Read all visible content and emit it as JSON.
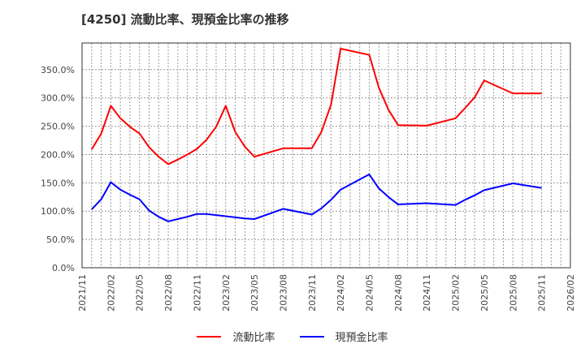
{
  "title": "[4250]  流動比率、現預金比率の推移",
  "colors": {
    "current_ratio": "#ff0000",
    "cash_ratio": "#0000ff",
    "grid": "#999999",
    "axis": "#333333"
  },
  "legend": [
    {
      "label": "流動比率",
      "color": "#ff0000"
    },
    {
      "label": "現預金比率",
      "color": "#0000ff"
    }
  ],
  "chart_data": {
    "type": "line",
    "title": "[4250]  流動比率、現預金比率の推移",
    "xlabel": "",
    "ylabel": "",
    "ylim": [
      0,
      397
    ],
    "yticks": [
      0,
      50,
      100,
      150,
      200,
      250,
      300,
      350
    ],
    "ytick_labels": [
      "0.0%",
      "50.0%",
      "100.0%",
      "150.0%",
      "200.0%",
      "250.0%",
      "300.0%",
      "350.0%"
    ],
    "xtick_labels": [
      "2021/11",
      "2022/02",
      "2022/05",
      "2022/08",
      "2022/11",
      "2023/02",
      "2023/05",
      "2023/08",
      "2023/11",
      "2024/02",
      "2024/05",
      "2024/08",
      "2024/11",
      "2025/02",
      "2025/05",
      "2025/08",
      "2025/11",
      "2026/02"
    ],
    "grid": true,
    "legend_position": "bottom",
    "x": [
      "2021/12",
      "2022/01",
      "2022/02",
      "2022/03",
      "2022/04",
      "2022/05",
      "2022/06",
      "2022/07",
      "2022/08",
      "2022/09",
      "2022/10",
      "2022/11",
      "2022/12",
      "2023/01",
      "2023/02",
      "2023/03",
      "2023/04",
      "2023/05",
      "2023/08",
      "2023/11",
      "2023/12",
      "2024/01",
      "2024/02",
      "2024/05",
      "2024/06",
      "2024/07",
      "2024/08",
      "2024/11",
      "2025/02",
      "2025/03",
      "2025/04",
      "2025/05",
      "2025/08",
      "2025/11"
    ],
    "series": [
      {
        "name": "流動比率",
        "color": "#ff0000",
        "values": [
          209,
          237,
          286,
          264,
          249,
          237,
          213,
          196,
          183,
          191,
          200,
          210,
          226,
          249,
          286,
          240,
          214,
          196,
          211,
          211,
          240,
          288,
          387,
          376,
          318,
          279,
          252,
          251,
          264,
          282,
          301,
          331,
          308,
          308
        ]
      },
      {
        "name": "現預金比率",
        "color": "#0000ff",
        "values": [
          103,
          121,
          151,
          138,
          129,
          121,
          101,
          90,
          82,
          86,
          90,
          95,
          95,
          93,
          91,
          89,
          87,
          86,
          104,
          94,
          105,
          120,
          138,
          165,
          140,
          125,
          112,
          114,
          111,
          120,
          128,
          137,
          149,
          141
        ]
      }
    ]
  }
}
